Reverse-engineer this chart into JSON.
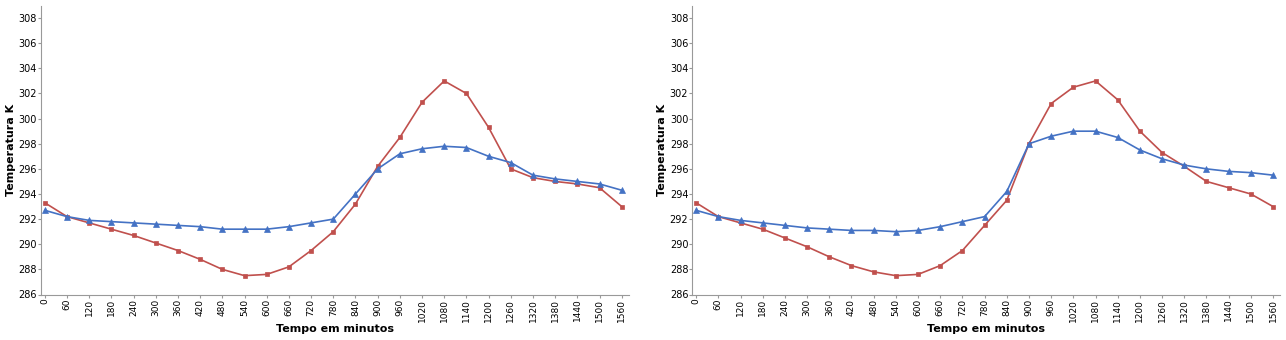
{
  "x": [
    0,
    60,
    120,
    180,
    240,
    300,
    360,
    420,
    480,
    540,
    600,
    660,
    720,
    780,
    840,
    900,
    960,
    1020,
    1080,
    1140,
    1200,
    1260,
    1320,
    1380,
    1440,
    1500,
    1560
  ],
  "blue_y1": [
    292.7,
    292.2,
    291.9,
    291.8,
    291.7,
    291.6,
    291.5,
    291.4,
    291.2,
    291.2,
    291.2,
    291.4,
    291.7,
    292.0,
    294.0,
    296.0,
    297.2,
    297.6,
    297.8,
    297.7,
    297.0,
    296.5,
    295.5,
    295.2,
    295.0,
    294.8,
    294.3
  ],
  "red_y1": [
    293.3,
    292.2,
    291.7,
    291.2,
    290.7,
    290.1,
    289.5,
    288.8,
    288.0,
    287.5,
    287.6,
    288.2,
    289.5,
    291.0,
    293.2,
    296.2,
    298.5,
    301.3,
    303.0,
    302.0,
    299.3,
    296.0,
    295.3,
    295.0,
    294.8,
    294.5,
    293.0
  ],
  "blue_y2": [
    292.7,
    292.2,
    291.9,
    291.7,
    291.5,
    291.3,
    291.2,
    291.1,
    291.1,
    291.0,
    291.1,
    291.4,
    291.8,
    292.2,
    294.2,
    298.0,
    298.6,
    299.0,
    299.0,
    298.5,
    297.5,
    296.8,
    296.3,
    296.0,
    295.8,
    295.7,
    295.5
  ],
  "red_y2": [
    293.3,
    292.2,
    291.7,
    291.2,
    290.5,
    289.8,
    289.0,
    288.3,
    287.8,
    287.5,
    287.6,
    288.3,
    289.5,
    291.5,
    293.5,
    298.0,
    301.2,
    302.5,
    303.0,
    301.5,
    299.0,
    297.3,
    296.2,
    295.0,
    294.5,
    294.0,
    293.0
  ],
  "blue_color": "#4472C4",
  "red_color": "#C0504D",
  "ylabel": "Temperatura K",
  "xlabel": "Tempo em minutos",
  "yticks": [
    286,
    288,
    290,
    292,
    294,
    296,
    298,
    300,
    302,
    304,
    306,
    308
  ],
  "xticks": [
    0,
    60,
    120,
    180,
    240,
    300,
    360,
    420,
    480,
    540,
    600,
    660,
    720,
    780,
    840,
    900,
    960,
    1020,
    1080,
    1140,
    1200,
    1260,
    1320,
    1380,
    1440,
    1500,
    1560
  ],
  "ylim": [
    286,
    309
  ],
  "xlim": [
    -10,
    1580
  ]
}
